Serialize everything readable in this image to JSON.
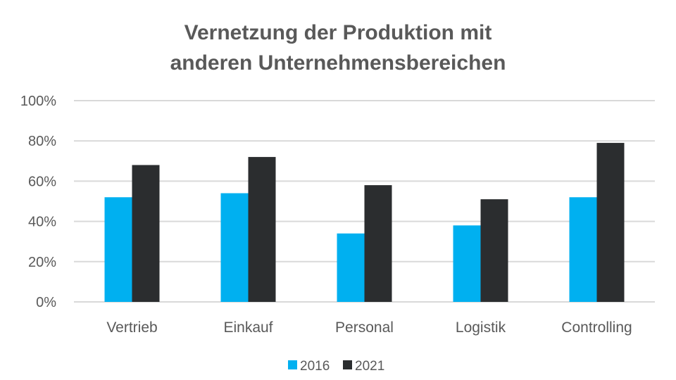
{
  "chart_data": {
    "type": "bar",
    "title": [
      "Vernetzung der Produktion mit",
      "anderen Unternehmensbereichen"
    ],
    "categories": [
      "Vertrieb",
      "Einkauf",
      "Personal",
      "Logistik",
      "Controlling"
    ],
    "series": [
      {
        "name": "2016",
        "color": "#00b0f0",
        "values": [
          52,
          54,
          34,
          38,
          52
        ]
      },
      {
        "name": "2021",
        "color": "#2b2d2f",
        "values": [
          68,
          72,
          58,
          51,
          79
        ]
      }
    ],
    "ylim": [
      0,
      100
    ],
    "yticks": [
      "0%",
      "20%",
      "40%",
      "60%",
      "80%",
      "100%"
    ],
    "grid": true,
    "legend": "bottom"
  }
}
